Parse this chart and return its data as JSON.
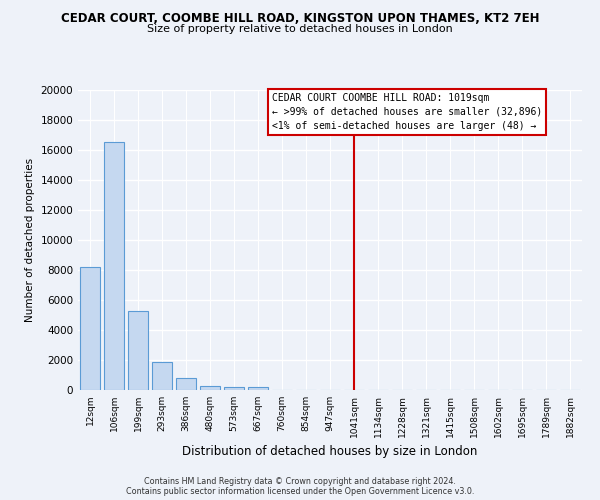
{
  "title": "CEDAR COURT, COOMBE HILL ROAD, KINGSTON UPON THAMES, KT2 7EH",
  "subtitle": "Size of property relative to detached houses in London",
  "xlabel": "Distribution of detached houses by size in London",
  "ylabel": "Number of detached properties",
  "bar_labels": [
    "12sqm",
    "106sqm",
    "199sqm",
    "293sqm",
    "386sqm",
    "480sqm",
    "573sqm",
    "667sqm",
    "760sqm",
    "854sqm",
    "947sqm",
    "1041sqm",
    "1134sqm",
    "1228sqm",
    "1321sqm",
    "1415sqm",
    "1508sqm",
    "1602sqm",
    "1695sqm",
    "1789sqm",
    "1882sqm"
  ],
  "bar_heights": [
    8200,
    16500,
    5300,
    1850,
    780,
    270,
    220,
    180,
    0,
    0,
    0,
    0,
    0,
    0,
    0,
    0,
    0,
    0,
    0,
    0,
    0
  ],
  "bar_color": "#c5d8f0",
  "bar_edge_color": "#5b9bd5",
  "vline_x_index": 11,
  "vline_color": "#cc0000",
  "ylim": [
    0,
    20000
  ],
  "yticks": [
    0,
    2000,
    4000,
    6000,
    8000,
    10000,
    12000,
    14000,
    16000,
    18000,
    20000
  ],
  "annotation_title": "CEDAR COURT COOMBE HILL ROAD: 1019sqm",
  "annotation_line1": "← >99% of detached houses are smaller (32,896)",
  "annotation_line2": "<1% of semi-detached houses are larger (48) →",
  "footer1": "Contains HM Land Registry data © Crown copyright and database right 2024.",
  "footer2": "Contains public sector information licensed under the Open Government Licence v3.0.",
  "bg_color": "#eef2f9",
  "grid_color": "#d8e0ec"
}
